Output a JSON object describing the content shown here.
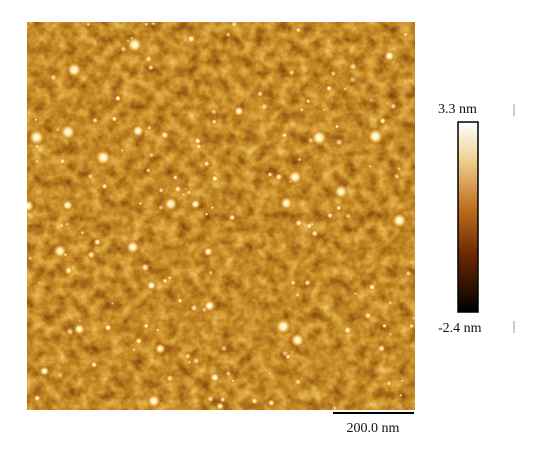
{
  "colorbar": {
    "max_label": "3.3 nm",
    "min_label": "-2.4 nm"
  },
  "scale_bar": {
    "label": "200.0 nm"
  }
}
